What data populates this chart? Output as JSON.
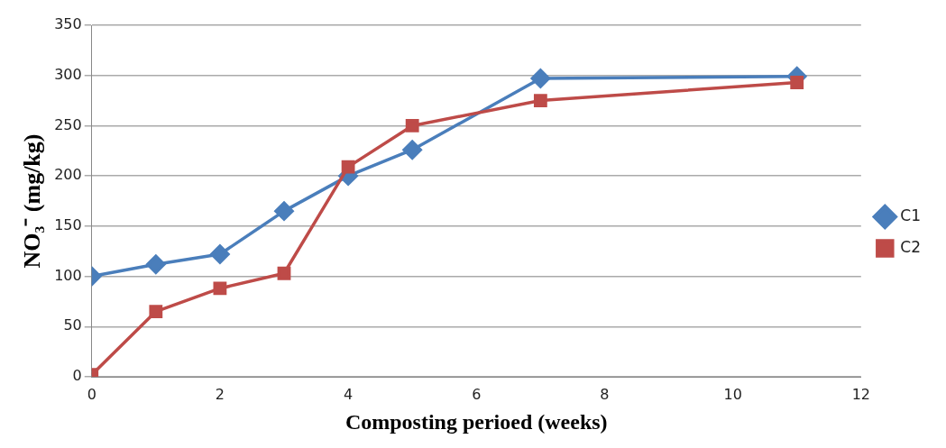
{
  "chart_data": {
    "type": "line",
    "xlabel": "Composting perioed (weeks)",
    "ylabel": "NO₃⁻ (mg/kg)",
    "x": [
      0,
      1,
      2,
      3,
      4,
      5,
      7,
      11
    ],
    "series": [
      {
        "name": "C1",
        "color": "#4a7ebb",
        "marker": "diamond",
        "values": [
          100,
          112,
          122,
          165,
          200,
          226,
          297,
          299
        ]
      },
      {
        "name": "C2",
        "color": "#be4b48",
        "marker": "square",
        "values": [
          2,
          65,
          88,
          103,
          209,
          250,
          275,
          293
        ]
      }
    ],
    "xlim": [
      0,
      12
    ],
    "xticks": [
      0,
      2,
      4,
      6,
      8,
      10,
      12
    ],
    "ylim": [
      0,
      350
    ],
    "yticks": [
      0,
      50,
      100,
      150,
      200,
      250,
      300,
      350
    ],
    "grid": "y",
    "legend": "right",
    "line_style": "solid"
  }
}
